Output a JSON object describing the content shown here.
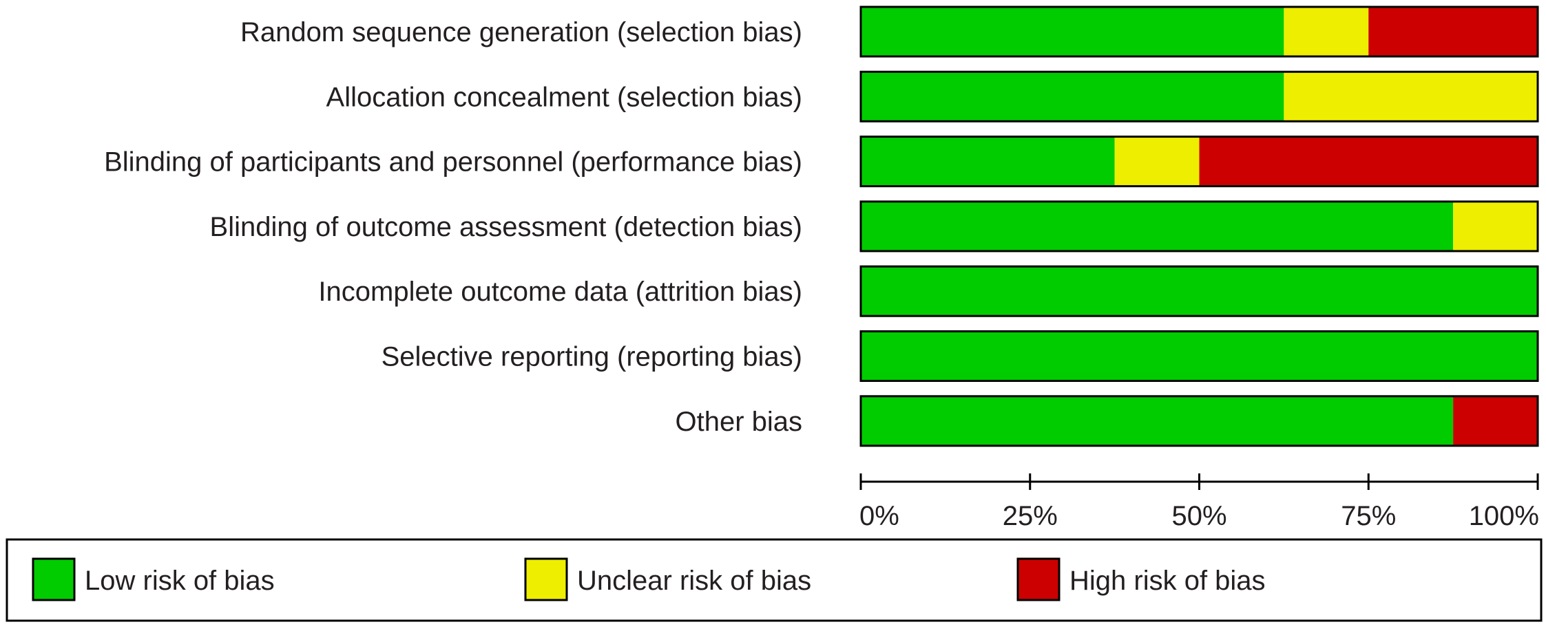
{
  "chart_data": {
    "type": "bar",
    "subtype": "stacked-horizontal-100",
    "title": "",
    "categories": [
      "Random sequence generation (selection bias)",
      "Allocation concealment (selection bias)",
      "Blinding of participants and personnel (performance bias)",
      "Blinding of outcome assessment (detection bias)",
      "Incomplete outcome data (attrition bias)",
      "Selective reporting (reporting bias)",
      "Other bias"
    ],
    "series": [
      {
        "name": "Low risk of bias",
        "color": "#00cc00",
        "values": [
          62.5,
          62.5,
          37.5,
          87.5,
          100,
          100,
          87.5
        ]
      },
      {
        "name": "Unclear risk of bias",
        "color": "#eeee00",
        "values": [
          12.5,
          37.5,
          12.5,
          12.5,
          0,
          0,
          0
        ]
      },
      {
        "name": "High risk of bias",
        "color": "#cc0000",
        "values": [
          25,
          0,
          50,
          0,
          0,
          0,
          12.5
        ]
      }
    ],
    "x_ticks": [
      0,
      25,
      50,
      75,
      100
    ],
    "x_tick_labels": [
      "0%",
      "25%",
      "50%",
      "75%",
      "100%"
    ],
    "xlim": [
      0,
      100
    ],
    "xlabel": "",
    "ylabel": "",
    "legend_position": "bottom"
  }
}
